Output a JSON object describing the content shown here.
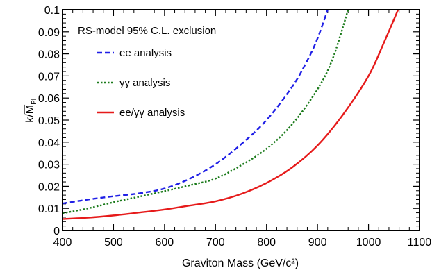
{
  "chart_data": {
    "type": "line",
    "title": "RS-model 95% C.L. exclusion",
    "xlabel": "Graviton Mass (GeV/c²)",
    "ylabel_main": "k/",
    "ylabel_bar": "M",
    "ylabel_sub": "Pl",
    "xlim": [
      400,
      1100
    ],
    "ylim": [
      0,
      0.1
    ],
    "xticks": [
      400,
      500,
      600,
      700,
      800,
      900,
      1000,
      1100
    ],
    "xtick_labels": [
      "400",
      "500",
      "600",
      "700",
      "800",
      "900",
      "1000",
      "1100"
    ],
    "yticks": [
      0,
      0.01,
      0.02,
      0.03,
      0.04,
      0.05,
      0.06,
      0.07,
      0.08,
      0.09,
      0.1
    ],
    "ytick_labels": [
      "0",
      "0.01",
      "0.02",
      "0.03",
      "0.04",
      "0.05",
      "0.06",
      "0.07",
      "0.08",
      "0.09",
      "0.1"
    ],
    "grid": false,
    "legend_position": "top-left",
    "series": [
      {
        "name": "ee analysis",
        "color": "#1f1fe6",
        "style": "dashed",
        "x": [
          400,
          450,
          500,
          550,
          600,
          650,
          700,
          750,
          800,
          850,
          880,
          900,
          920
        ],
        "y": [
          0.0122,
          0.014,
          0.0155,
          0.0168,
          0.019,
          0.0235,
          0.03,
          0.039,
          0.05,
          0.065,
          0.077,
          0.087,
          0.1
        ]
      },
      {
        "name": "γγ analysis",
        "color": "#1a7a1a",
        "style": "dotted",
        "x": [
          400,
          450,
          500,
          550,
          600,
          650,
          700,
          750,
          800,
          850,
          900,
          930,
          960
        ],
        "y": [
          0.0078,
          0.01,
          0.0128,
          0.0153,
          0.0178,
          0.0205,
          0.0235,
          0.0295,
          0.037,
          0.048,
          0.064,
          0.078,
          0.1
        ]
      },
      {
        "name": "ee/γγ analysis",
        "color": "#e61a1a",
        "style": "solid",
        "x": [
          400,
          450,
          500,
          550,
          600,
          650,
          700,
          750,
          800,
          850,
          900,
          950,
          1000,
          1030,
          1058
        ],
        "y": [
          0.0052,
          0.0058,
          0.0068,
          0.0081,
          0.0095,
          0.0113,
          0.0132,
          0.0165,
          0.0215,
          0.0285,
          0.0385,
          0.0525,
          0.07,
          0.085,
          0.1
        ]
      }
    ]
  }
}
